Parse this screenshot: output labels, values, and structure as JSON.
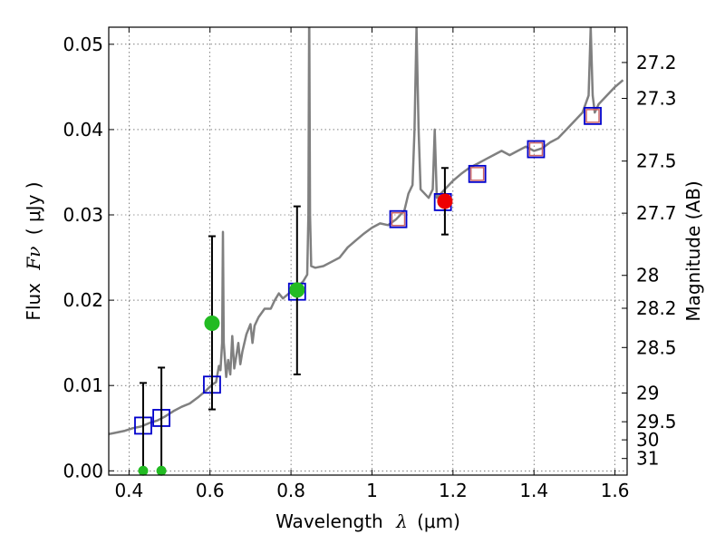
{
  "chart_data": {
    "type": "scatter",
    "title": "",
    "xlabel_main": "Wavelength",
    "xlabel_symbol": "λ",
    "xlabel_unit": "(μm)",
    "ylabel_main": "Flux",
    "ylabel_symbol": "Fν",
    "ylabel_unit": "( μJy )",
    "y2label": "Magnitude (AB)",
    "xlim": [
      0.35,
      1.63
    ],
    "ylim": [
      -0.0005,
      0.052
    ],
    "grid": true,
    "x_ticks": [
      {
        "value": 0.4,
        "label": "0.4"
      },
      {
        "value": 0.6,
        "label": "0.6"
      },
      {
        "value": 0.8,
        "label": "0.8"
      },
      {
        "value": 1.0,
        "label": "1"
      },
      {
        "value": 1.2,
        "label": "1.2"
      },
      {
        "value": 1.4,
        "label": "1.4"
      },
      {
        "value": 1.6,
        "label": "1.6"
      }
    ],
    "y_ticks": [
      {
        "value": 0.0,
        "label": "0.00"
      },
      {
        "value": 0.01,
        "label": "0.01"
      },
      {
        "value": 0.02,
        "label": "0.02"
      },
      {
        "value": 0.03,
        "label": "0.03"
      },
      {
        "value": 0.04,
        "label": "0.04"
      },
      {
        "value": 0.05,
        "label": "0.05"
      }
    ],
    "y2_ticks": [
      {
        "mag": 27.2,
        "label": "27.2"
      },
      {
        "mag": 27.3,
        "label": "27.3"
      },
      {
        "mag": 27.5,
        "label": "27.5"
      },
      {
        "mag": 27.7,
        "label": "27.7"
      },
      {
        "mag": 28.0,
        "label": "28"
      },
      {
        "mag": 28.2,
        "label": "28.2"
      },
      {
        "mag": 28.5,
        "label": "28.5"
      },
      {
        "mag": 29.0,
        "label": "29"
      },
      {
        "mag": 29.5,
        "label": "29.5"
      },
      {
        "mag": 30.0,
        "label": "30"
      },
      {
        "mag": 31.0,
        "label": "31"
      }
    ],
    "colors": {
      "model": "#808080",
      "model_bands": "#0000cc",
      "green_obs": "#22bb22",
      "red_obs": "#ee0000",
      "errorbar": "#000000",
      "inner_square": "#cc6666"
    },
    "model_spectrum": [
      [
        0.35,
        0.0043
      ],
      [
        0.37,
        0.0045
      ],
      [
        0.39,
        0.0047
      ],
      [
        0.41,
        0.005
      ],
      [
        0.43,
        0.0052
      ],
      [
        0.45,
        0.0056
      ],
      [
        0.47,
        0.0059
      ],
      [
        0.49,
        0.0064
      ],
      [
        0.51,
        0.007
      ],
      [
        0.53,
        0.0075
      ],
      [
        0.55,
        0.0079
      ],
      [
        0.57,
        0.0086
      ],
      [
        0.59,
        0.0094
      ],
      [
        0.605,
        0.0101
      ],
      [
        0.615,
        0.0104
      ],
      [
        0.622,
        0.0123
      ],
      [
        0.626,
        0.0118
      ],
      [
        0.63,
        0.015
      ],
      [
        0.632,
        0.028
      ],
      [
        0.634,
        0.015
      ],
      [
        0.64,
        0.011
      ],
      [
        0.645,
        0.013
      ],
      [
        0.65,
        0.0113
      ],
      [
        0.655,
        0.0158
      ],
      [
        0.66,
        0.012
      ],
      [
        0.665,
        0.0135
      ],
      [
        0.67,
        0.015
      ],
      [
        0.675,
        0.0125
      ],
      [
        0.68,
        0.014
      ],
      [
        0.69,
        0.016
      ],
      [
        0.7,
        0.0172
      ],
      [
        0.705,
        0.015
      ],
      [
        0.71,
        0.017
      ],
      [
        0.72,
        0.018
      ],
      [
        0.735,
        0.019
      ],
      [
        0.75,
        0.019
      ],
      [
        0.76,
        0.02
      ],
      [
        0.77,
        0.0208
      ],
      [
        0.78,
        0.0202
      ],
      [
        0.8,
        0.021
      ],
      [
        0.815,
        0.0215
      ],
      [
        0.83,
        0.0222
      ],
      [
        0.84,
        0.023
      ],
      [
        0.843,
        0.03
      ],
      [
        0.845,
        0.055
      ],
      [
        0.847,
        0.03
      ],
      [
        0.85,
        0.024
      ],
      [
        0.86,
        0.0238
      ],
      [
        0.88,
        0.024
      ],
      [
        0.9,
        0.0245
      ],
      [
        0.92,
        0.025
      ],
      [
        0.94,
        0.0262
      ],
      [
        0.96,
        0.027
      ],
      [
        0.98,
        0.0278
      ],
      [
        1.0,
        0.0285
      ],
      [
        1.02,
        0.029
      ],
      [
        1.04,
        0.0288
      ],
      [
        1.06,
        0.0295
      ],
      [
        1.08,
        0.0305
      ],
      [
        1.09,
        0.0325
      ],
      [
        1.1,
        0.0335
      ],
      [
        1.105,
        0.04
      ],
      [
        1.11,
        0.052
      ],
      [
        1.115,
        0.04
      ],
      [
        1.12,
        0.033
      ],
      [
        1.14,
        0.032
      ],
      [
        1.15,
        0.033
      ],
      [
        1.155,
        0.04
      ],
      [
        1.16,
        0.032
      ],
      [
        1.18,
        0.033
      ],
      [
        1.2,
        0.034
      ],
      [
        1.22,
        0.0348
      ],
      [
        1.24,
        0.0355
      ],
      [
        1.26,
        0.036
      ],
      [
        1.28,
        0.0365
      ],
      [
        1.3,
        0.037
      ],
      [
        1.32,
        0.0375
      ],
      [
        1.34,
        0.037
      ],
      [
        1.36,
        0.0375
      ],
      [
        1.38,
        0.038
      ],
      [
        1.4,
        0.0375
      ],
      [
        1.42,
        0.0378
      ],
      [
        1.44,
        0.0385
      ],
      [
        1.46,
        0.039
      ],
      [
        1.48,
        0.04
      ],
      [
        1.5,
        0.041
      ],
      [
        1.52,
        0.042
      ],
      [
        1.535,
        0.044
      ],
      [
        1.54,
        0.052
      ],
      [
        1.545,
        0.044
      ],
      [
        1.55,
        0.042
      ],
      [
        1.56,
        0.043
      ],
      [
        1.58,
        0.044
      ],
      [
        1.6,
        0.045
      ],
      [
        1.62,
        0.0458
      ]
    ],
    "model_bands": [
      {
        "x": 0.435,
        "y": 0.0053
      },
      {
        "x": 0.48,
        "y": 0.0062
      },
      {
        "x": 0.605,
        "y": 0.0101
      },
      {
        "x": 0.815,
        "y": 0.021
      },
      {
        "x": 1.065,
        "y": 0.0295
      },
      {
        "x": 1.175,
        "y": 0.0315
      },
      {
        "x": 1.26,
        "y": 0.0348
      },
      {
        "x": 1.405,
        "y": 0.0377
      },
      {
        "x": 1.545,
        "y": 0.0416
      }
    ],
    "inner_marker_bands": [
      1.065,
      1.26,
      1.405,
      1.545
    ],
    "observations": [
      {
        "x": 0.435,
        "y": 0.0,
        "err_lo": 0.0,
        "err_hi": 0.0103,
        "color": "green"
      },
      {
        "x": 0.48,
        "y": 0.0,
        "err_lo": 0.0,
        "err_hi": 0.0121,
        "color": "green"
      },
      {
        "x": 0.605,
        "y": 0.0173,
        "err_lo": 0.0101,
        "err_hi": 0.0102,
        "color": "green"
      },
      {
        "x": 0.815,
        "y": 0.0212,
        "err_lo": 0.0099,
        "err_hi": 0.0098,
        "color": "green"
      },
      {
        "x": 1.18,
        "y": 0.0316,
        "err_lo": 0.0039,
        "err_hi": 0.0039,
        "color": "red"
      }
    ]
  }
}
